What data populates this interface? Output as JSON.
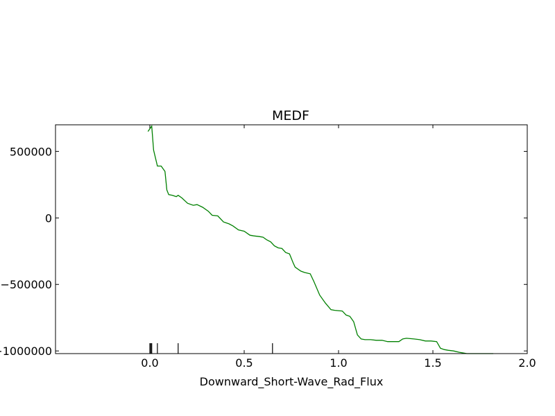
{
  "chart_data": {
    "type": "line",
    "title": "MEDF",
    "xlabel": "Downward_Short-Wave_Rad_Flux",
    "ylabel": "",
    "xlim": [
      -0.5,
      2.0
    ],
    "ylim": [
      -1020000,
      700000
    ],
    "grid": false,
    "x_ticks": [
      0.0,
      0.5,
      1.0,
      1.5,
      2.0
    ],
    "x_tick_labels": [
      "0.0",
      "0.5",
      "1.0",
      "1.5",
      "2.0"
    ],
    "y_ticks": [
      500000,
      0,
      -500000,
      -1000000
    ],
    "y_tick_labels": [
      "500000",
      "0",
      "−500000",
      "−1000000"
    ],
    "series_color": "#008000",
    "series": [
      {
        "x": [
          -0.01,
          0.01,
          0.02,
          0.04,
          0.06,
          0.08,
          0.09,
          0.1,
          0.12,
          0.14,
          0.15,
          0.17,
          0.2,
          0.23,
          0.25,
          0.28,
          0.31,
          0.33,
          0.36,
          0.39,
          0.42,
          0.44,
          0.47,
          0.5,
          0.53,
          0.55,
          0.58,
          0.6,
          0.62,
          0.64,
          0.66,
          0.68,
          0.7,
          0.72,
          0.74,
          0.76,
          0.77,
          0.8,
          0.82,
          0.85,
          0.87,
          0.9,
          0.93,
          0.96,
          0.98,
          1.02,
          1.04,
          1.06,
          1.08,
          1.1,
          1.12,
          1.14,
          1.17,
          1.2,
          1.23,
          1.26,
          1.29,
          1.32,
          1.34,
          1.36,
          1.4,
          1.43,
          1.46,
          1.49,
          1.52,
          1.54,
          1.56,
          1.58,
          1.61,
          1.64,
          1.66,
          1.68,
          1.7,
          1.75,
          1.8,
          1.82
        ],
        "y": [
          650000,
          690000,
          510000,
          390000,
          390000,
          350000,
          210000,
          175000,
          170000,
          160000,
          170000,
          150000,
          110000,
          95000,
          100000,
          80000,
          50000,
          20000,
          15000,
          -30000,
          -45000,
          -60000,
          -90000,
          -100000,
          -130000,
          -135000,
          -140000,
          -145000,
          -165000,
          -180000,
          -210000,
          -225000,
          -230000,
          -260000,
          -270000,
          -340000,
          -370000,
          -400000,
          -410000,
          -420000,
          -480000,
          -580000,
          -640000,
          -690000,
          -695000,
          -700000,
          -730000,
          -740000,
          -780000,
          -880000,
          -910000,
          -915000,
          -915000,
          -920000,
          -920000,
          -930000,
          -930000,
          -930000,
          -910000,
          -905000,
          -910000,
          -915000,
          -925000,
          -925000,
          -930000,
          -980000,
          -990000,
          -995000,
          -1000000,
          -1010000,
          -1015000,
          -1020000,
          -1020000,
          -1020000,
          -1020000,
          -1020000
        ]
      }
    ],
    "rug_x": [
      0.0,
      0.005,
      0.01,
      0.04,
      0.15,
      0.65
    ]
  }
}
